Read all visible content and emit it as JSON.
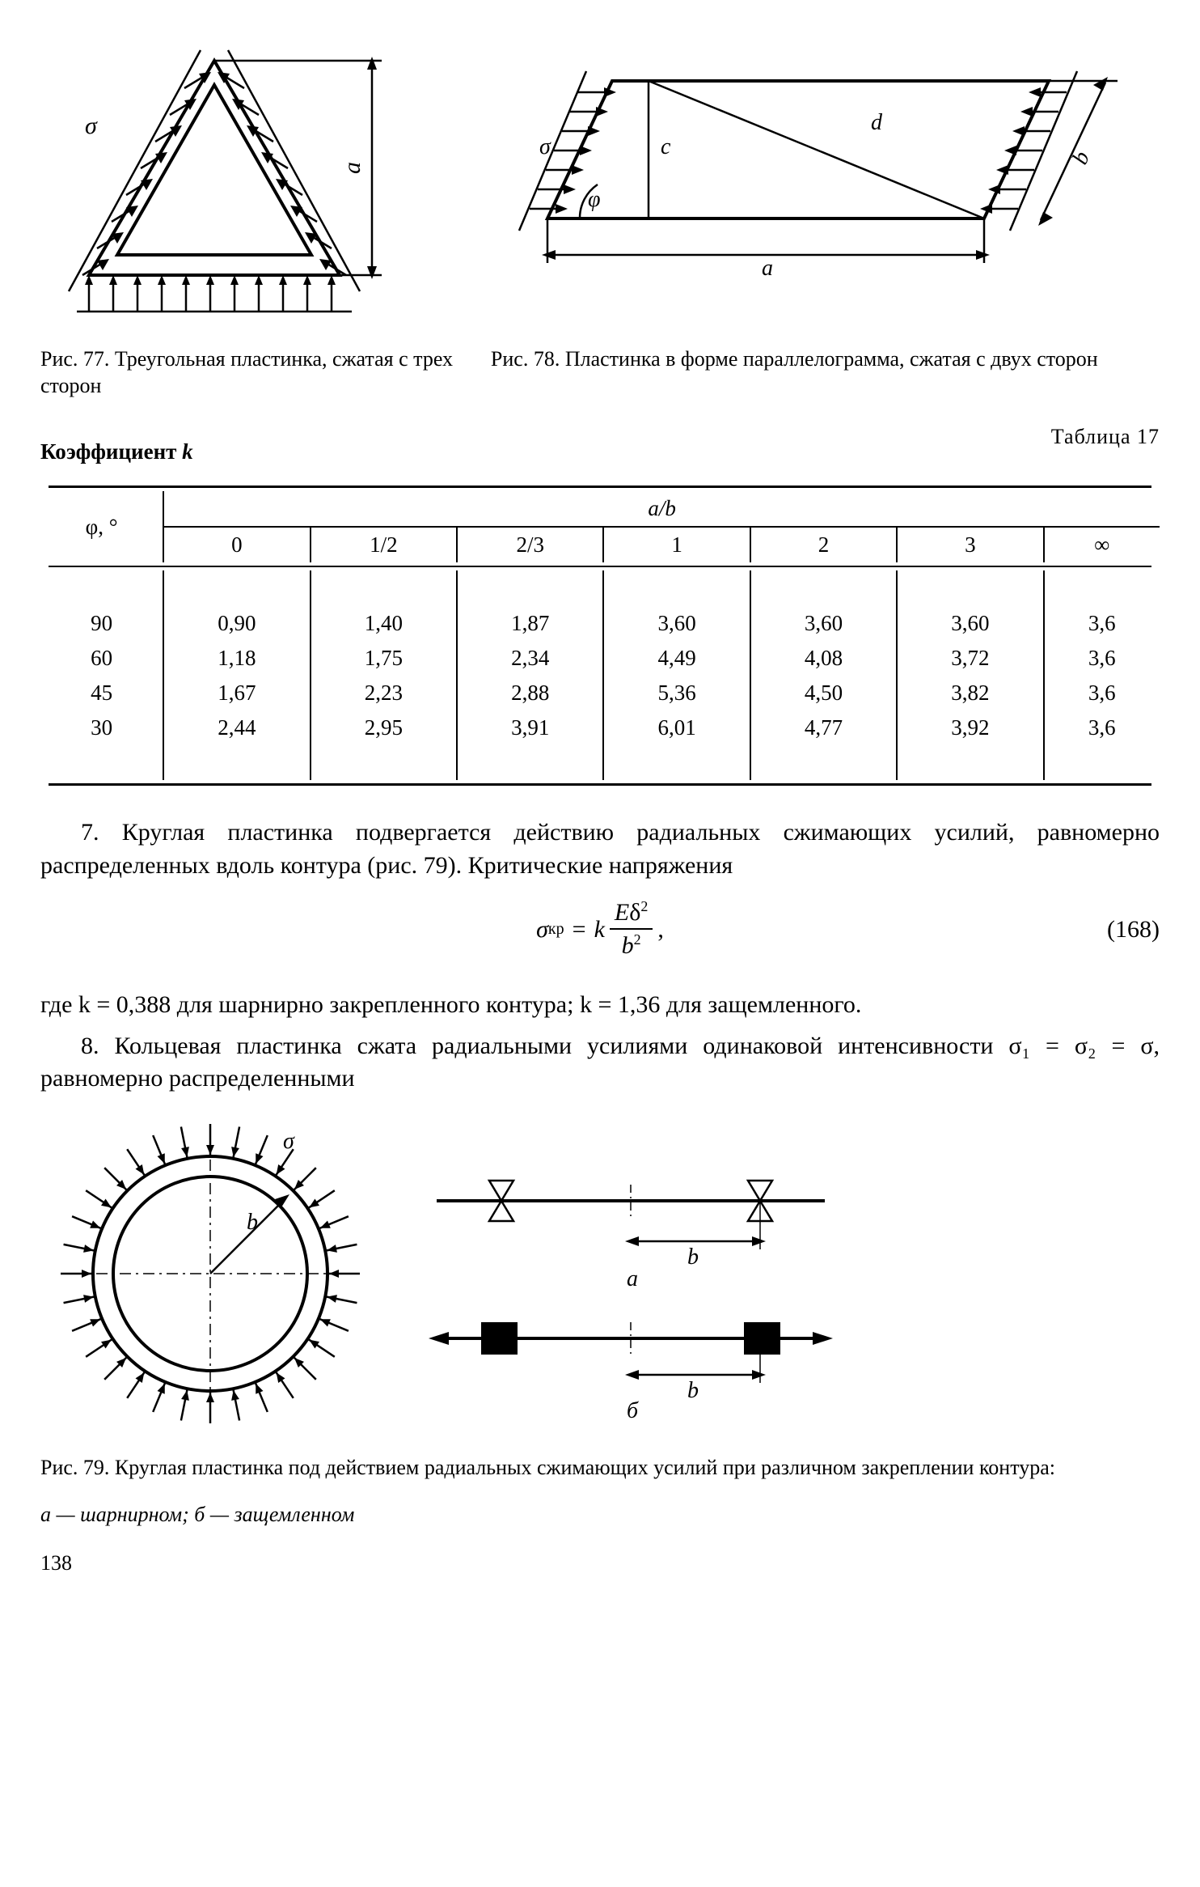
{
  "fig77": {
    "caption": "Рис. 77. Треугольная пластинка, сжатая с трех сторон",
    "labels": {
      "sigma": "σ",
      "a": "a"
    }
  },
  "fig78": {
    "caption": "Рис. 78. Пластинка в форме параллелограмма, сжатая с двух сторон",
    "labels": {
      "sigma": "σ",
      "phi": "φ",
      "a": "a",
      "b": "b",
      "c": "c",
      "d": "d"
    }
  },
  "table17": {
    "label_right": "Таблица 17",
    "title": "Коэффициент k",
    "col_header_main": "a/b",
    "row_header": "φ, °",
    "columns": [
      "0",
      "1/2",
      "2/3",
      "1",
      "2",
      "3",
      "∞"
    ],
    "rows": [
      {
        "phi": "90",
        "vals": [
          "0,90",
          "1,40",
          "1,87",
          "3,60",
          "3,60",
          "3,60",
          "3,6"
        ]
      },
      {
        "phi": "60",
        "vals": [
          "1,18",
          "1,75",
          "2,34",
          "4,49",
          "4,08",
          "3,72",
          "3,6"
        ]
      },
      {
        "phi": "45",
        "vals": [
          "1,67",
          "2,23",
          "2,88",
          "5,36",
          "4,50",
          "3,82",
          "3,6"
        ]
      },
      {
        "phi": "30",
        "vals": [
          "2,44",
          "2,95",
          "3,91",
          "6,01",
          "4,77",
          "3,92",
          "3,6"
        ]
      }
    ]
  },
  "para7": "7. Круглая пластинка подвергается действию радиальных сжимающих усилий, равномерно распределенных вдоль контура (рис. 79). Критические напряжения",
  "equation": {
    "lhs": "σкр",
    "eq": "=",
    "coef": "k",
    "num": "Eδ²",
    "den": "b²",
    "tail": ",",
    "num_label": "(168)"
  },
  "para7b": "где k = 0,388 для шарнирно закрепленного контура; k = 1,36 для защемленного.",
  "para8": "8. Кольцевая пластинка сжата радиальными усилиями одинаковой интенсивности σ₁ = σ₂ = σ, равномерно распределенными",
  "fig79": {
    "caption_main": "Рис. 79. Круглая пластинка под действием радиальных сжимающих усилий при различном закреплении контура:",
    "caption_sub": "а — шарнирном; б — защемленном",
    "labels": {
      "sigma": "σ",
      "b": "b",
      "a": "а",
      "b2": "б"
    }
  },
  "page": "138"
}
